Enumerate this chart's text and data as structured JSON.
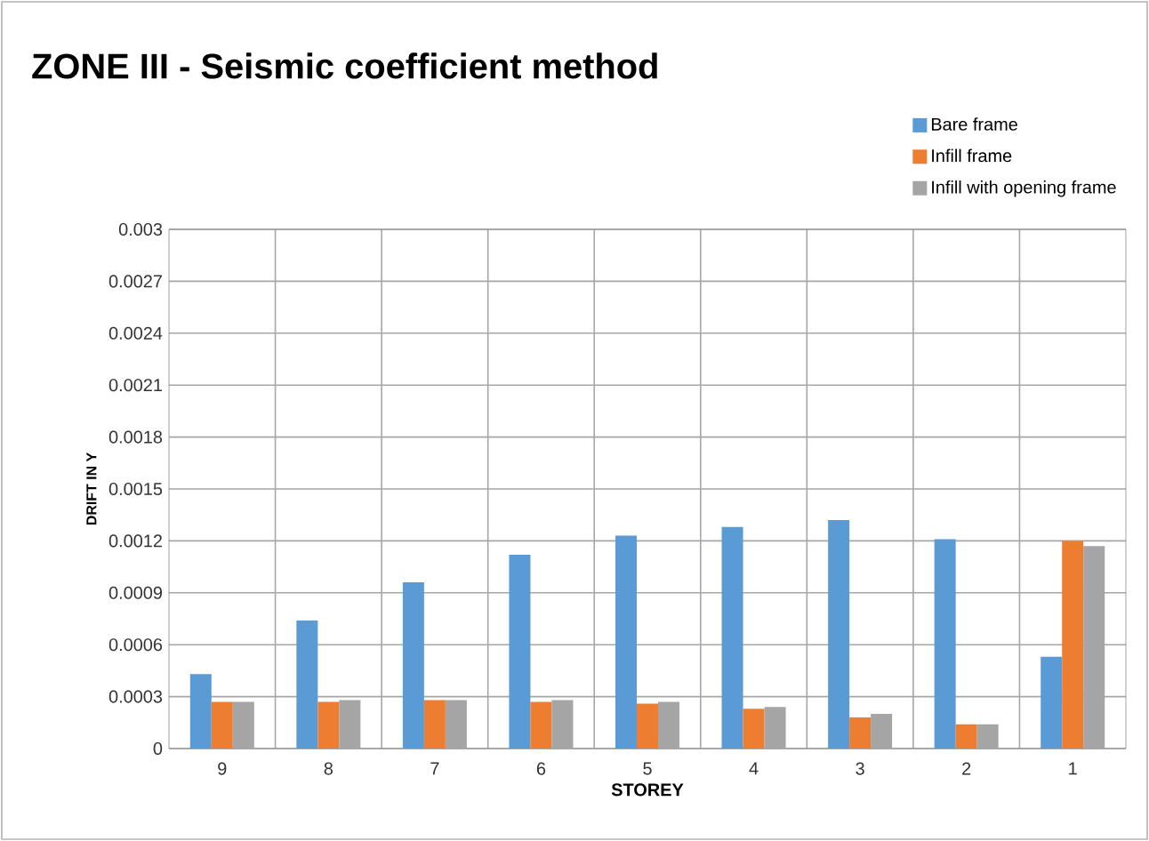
{
  "chart_data": {
    "type": "bar",
    "title": "ZONE III - Seismic coefficient method",
    "xlabel": "STOREY",
    "ylabel": "DRIFT IN Y",
    "categories": [
      "9",
      "8",
      "7",
      "6",
      "5",
      "4",
      "3",
      "2",
      "1"
    ],
    "series": [
      {
        "name": "Bare frame",
        "color": "#5b9bd5",
        "values": [
          0.00043,
          0.00074,
          0.00096,
          0.00112,
          0.00123,
          0.00128,
          0.00132,
          0.00121,
          0.00053
        ]
      },
      {
        "name": "Infill frame",
        "color": "#ed7d31",
        "values": [
          0.00027,
          0.00027,
          0.00028,
          0.00027,
          0.00026,
          0.00023,
          0.00018,
          0.00014,
          0.0012
        ]
      },
      {
        "name": "Infill with opening frame",
        "color": "#a5a5a5",
        "values": [
          0.00027,
          0.00028,
          0.00028,
          0.00028,
          0.00027,
          0.00024,
          0.0002,
          0.00014,
          0.00117
        ]
      }
    ],
    "ylim": [
      0,
      0.003
    ],
    "yticks": [
      0,
      0.0003,
      0.0006,
      0.0009,
      0.0012,
      0.0015,
      0.0018,
      0.0021,
      0.0024,
      0.0027,
      0.003
    ],
    "grid": true,
    "legend": "top right"
  }
}
